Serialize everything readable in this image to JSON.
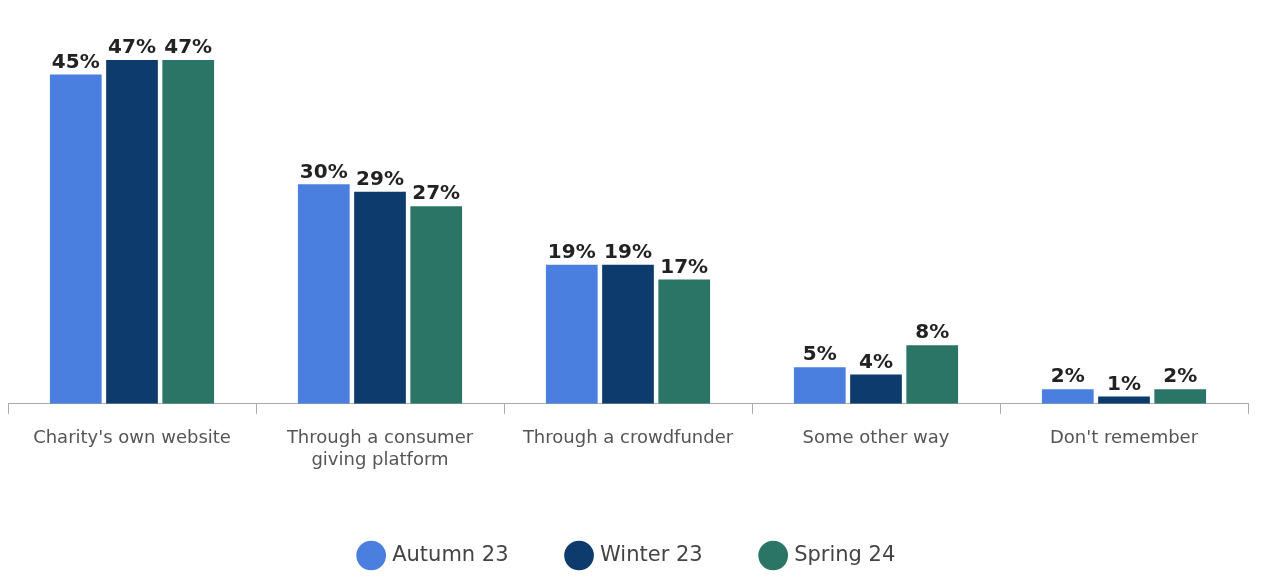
{
  "chart_data": {
    "type": "bar",
    "categories": [
      "Charity's own website",
      "Through a consumer giving platform",
      "Through a crowdfunder",
      "Some other way",
      "Don't remember"
    ],
    "series": [
      {
        "name": "Autumn 23",
        "color": "#4a7fe0",
        "values": [
          45,
          30,
          19,
          5,
          2
        ],
        "value_labels": [
          "45%",
          "30%",
          "19%",
          "5%",
          "2%"
        ]
      },
      {
        "name": "Winter 23",
        "color": "#0d3b6e",
        "values": [
          47,
          29,
          19,
          4,
          1
        ],
        "value_labels": [
          "47%",
          "29%",
          "19%",
          "4%",
          "1%"
        ]
      },
      {
        "name": "Spring 24",
        "color": "#2a7566",
        "values": [
          47,
          27,
          17,
          8,
          2
        ],
        "value_labels": [
          "47%",
          "27%",
          "17%",
          "8%",
          "2%"
        ]
      }
    ],
    "legend": "bottom"
  }
}
